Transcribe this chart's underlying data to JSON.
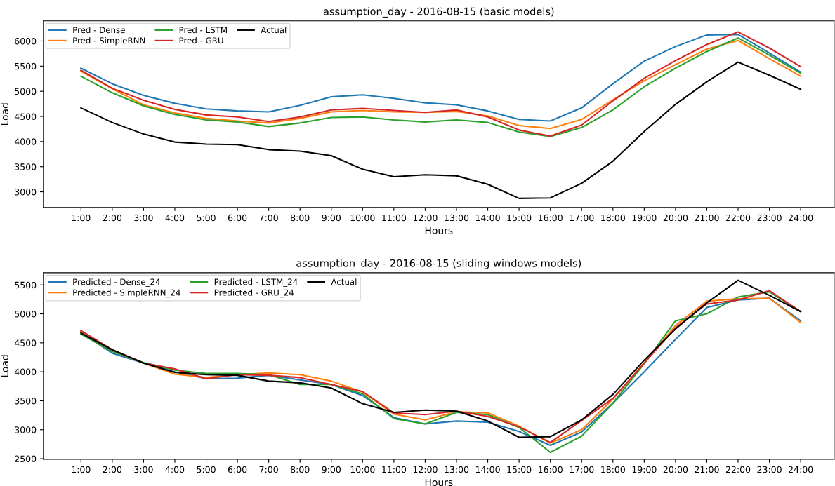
{
  "chart_data": [
    {
      "type": "line",
      "title": "assumption_day - 2016-08-15 (basic models)",
      "xlabel": "Hours",
      "ylabel": "Load",
      "categories": [
        "1:00",
        "2:00",
        "3:00",
        "4:00",
        "5:00",
        "6:00",
        "7:00",
        "8:00",
        "9:00",
        "10:00",
        "11:00",
        "12:00",
        "13:00",
        "14:00",
        "15:00",
        "16:00",
        "17:00",
        "18:00",
        "19:00",
        "20:00",
        "21:00",
        "22:00",
        "23:00",
        "24:00"
      ],
      "series": [
        {
          "name": "Pred - Dense",
          "color": "#1f77b4",
          "values": [
            5460,
            5150,
            4920,
            4760,
            4650,
            4610,
            4590,
            4720,
            4890,
            4930,
            4860,
            4770,
            4730,
            4610,
            4440,
            4410,
            4670,
            5150,
            5600,
            5890,
            6120,
            6130,
            5760,
            5380
          ]
        },
        {
          "name": "Pred - SimpleRNN",
          "color": "#ff7f0e",
          "values": [
            5400,
            5050,
            4730,
            4570,
            4460,
            4410,
            4370,
            4460,
            4590,
            4620,
            4590,
            4580,
            4600,
            4510,
            4320,
            4260,
            4440,
            4830,
            5210,
            5530,
            5840,
            6010,
            5650,
            5300
          ]
        },
        {
          "name": "Pred - LSTM",
          "color": "#2ca02c",
          "values": [
            5300,
            4970,
            4710,
            4540,
            4430,
            4390,
            4300,
            4370,
            4480,
            4490,
            4430,
            4390,
            4430,
            4380,
            4190,
            4100,
            4280,
            4630,
            5090,
            5460,
            5790,
            6060,
            5720,
            5360
          ]
        },
        {
          "name": "Pred - GRU",
          "color": "#d62728",
          "values": [
            5420,
            5060,
            4820,
            4640,
            4530,
            4490,
            4400,
            4490,
            4630,
            4660,
            4620,
            4580,
            4630,
            4490,
            4230,
            4110,
            4330,
            4810,
            5260,
            5610,
            5930,
            6180,
            5860,
            5490
          ]
        },
        {
          "name": "Actual",
          "color": "#000000",
          "values": [
            4670,
            4380,
            4150,
            3990,
            3950,
            3940,
            3840,
            3810,
            3720,
            3450,
            3300,
            3340,
            3320,
            3150,
            2870,
            2880,
            3170,
            3610,
            4200,
            4740,
            5190,
            5580,
            5320,
            5040
          ]
        }
      ],
      "ylim": [
        2690,
        6400
      ],
      "yticks": [
        3000,
        3500,
        4000,
        4500,
        5000,
        5500,
        6000
      ],
      "legend": "top left",
      "grid": false
    },
    {
      "type": "line",
      "title": "assumption_day - 2016-08-15 (sliding windows models)",
      "xlabel": "Hours",
      "ylabel": "Load",
      "categories": [
        "1:00",
        "2:00",
        "3:00",
        "4:00",
        "5:00",
        "6:00",
        "7:00",
        "8:00",
        "9:00",
        "10:00",
        "11:00",
        "12:00",
        "13:00",
        "14:00",
        "15:00",
        "16:00",
        "17:00",
        "18:00",
        "19:00",
        "20:00",
        "21:00",
        "22:00",
        "23:00",
        "24:00"
      ],
      "series": [
        {
          "name": "Predicted - Dense_24",
          "color": "#1f77b4",
          "values": [
            4680,
            4320,
            4150,
            4000,
            3880,
            3890,
            3940,
            3860,
            3780,
            3590,
            3210,
            3100,
            3150,
            3130,
            2970,
            2730,
            2960,
            3460,
            4000,
            4560,
            5110,
            5240,
            5270,
            4880
          ]
        },
        {
          "name": "Predicted - SimpleRNN_24",
          "color": "#ff7f0e",
          "values": [
            4700,
            4360,
            4150,
            3960,
            3900,
            3950,
            3980,
            3950,
            3840,
            3650,
            3270,
            3170,
            3310,
            3290,
            3060,
            2770,
            3000,
            3530,
            4150,
            4800,
            5220,
            5260,
            5270,
            4850
          ]
        },
        {
          "name": "Predicted - LSTM_24",
          "color": "#2ca02c",
          "values": [
            4650,
            4350,
            4160,
            4030,
            3970,
            3970,
            3950,
            3780,
            3780,
            3620,
            3190,
            3100,
            3300,
            3260,
            3040,
            2610,
            2890,
            3460,
            4140,
            4880,
            5000,
            5290,
            5380,
            5040
          ]
        },
        {
          "name": "Predicted - GRU_24",
          "color": "#d62728",
          "values": [
            4710,
            4380,
            4150,
            4050,
            3880,
            3950,
            3940,
            3900,
            3780,
            3660,
            3290,
            3260,
            3320,
            3230,
            3050,
            2780,
            3160,
            3540,
            4150,
            4760,
            5170,
            5240,
            5400,
            5040
          ]
        },
        {
          "name": "Actual",
          "color": "#000000",
          "values": [
            4670,
            4380,
            4150,
            3990,
            3950,
            3940,
            3840,
            3810,
            3720,
            3450,
            3300,
            3340,
            3320,
            3150,
            2870,
            2880,
            3170,
            3610,
            4200,
            4740,
            5190,
            5580,
            5320,
            5040
          ]
        }
      ],
      "ylim": [
        2490,
        5710
      ],
      "yticks": [
        2500,
        3000,
        3500,
        4000,
        4500,
        5000,
        5500
      ],
      "legend": "top left",
      "grid": false
    }
  ]
}
